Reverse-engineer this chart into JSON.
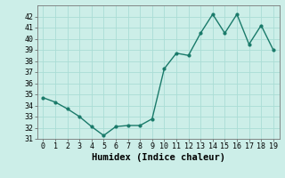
{
  "x": [
    0,
    1,
    2,
    3,
    4,
    5,
    6,
    7,
    8,
    9,
    10,
    11,
    12,
    13,
    14,
    15,
    16,
    17,
    18,
    19
  ],
  "y": [
    34.7,
    34.3,
    33.7,
    33.0,
    32.1,
    31.3,
    32.1,
    32.2,
    32.2,
    32.8,
    37.3,
    38.7,
    38.5,
    40.5,
    42.2,
    40.5,
    42.2,
    39.5,
    41.2,
    39.0
  ],
  "line_color": "#1a7a6a",
  "marker": "o",
  "marker_size": 2.0,
  "bg_color": "#cceee8",
  "grid_color": "#aaddd5",
  "xlabel": "Humidex (Indice chaleur)",
  "ylim": [
    31,
    43
  ],
  "xlim": [
    -0.5,
    19.5
  ],
  "yticks": [
    31,
    32,
    33,
    34,
    35,
    36,
    37,
    38,
    39,
    40,
    41,
    42
  ],
  "xticks": [
    0,
    1,
    2,
    3,
    4,
    5,
    6,
    7,
    8,
    9,
    10,
    11,
    12,
    13,
    14,
    15,
    16,
    17,
    18,
    19
  ],
  "xlabel_fontsize": 7.5,
  "tick_fontsize": 6.0,
  "line_width": 1.0
}
